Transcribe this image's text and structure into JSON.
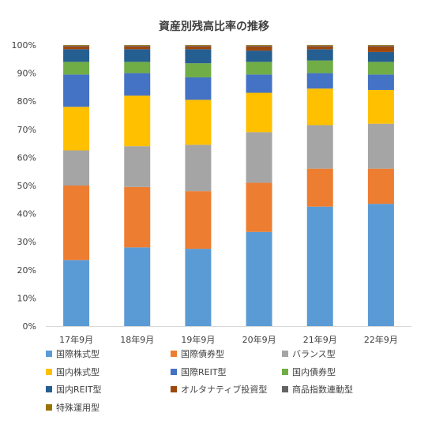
{
  "chart_data": {
    "type": "bar",
    "stacked": true,
    "title": "資産別残高比率の推移",
    "categories": [
      "17年9月",
      "18年9月",
      "19年9月",
      "20年9月",
      "21年9月",
      "22年9月"
    ],
    "ylim": [
      0,
      100
    ],
    "yticks": [
      "0%",
      "10%",
      "20%",
      "30%",
      "40%",
      "50%",
      "60%",
      "70%",
      "80%",
      "90%",
      "100%"
    ],
    "grid": false,
    "legend_position": "bottom",
    "series": [
      {
        "name": "国際株式型",
        "color": "#5B9BD5",
        "values": [
          23.5,
          28.0,
          27.5,
          33.5,
          42.5,
          43.5
        ]
      },
      {
        "name": "国際債券型",
        "color": "#ED7D31",
        "values": [
          26.5,
          21.5,
          20.5,
          17.5,
          13.5,
          12.5
        ]
      },
      {
        "name": "バランス型",
        "color": "#A5A5A5",
        "values": [
          12.5,
          14.5,
          16.5,
          18.0,
          15.5,
          16.0
        ]
      },
      {
        "name": "国内株式型",
        "color": "#FFC000",
        "values": [
          15.5,
          18.0,
          16.0,
          14.0,
          13.0,
          12.0
        ]
      },
      {
        "name": "国際REIT型",
        "color": "#4472C4",
        "values": [
          11.5,
          8.0,
          8.0,
          6.5,
          5.5,
          5.5
        ]
      },
      {
        "name": "国内債券型",
        "color": "#70AD47",
        "values": [
          4.5,
          4.0,
          5.0,
          4.5,
          4.5,
          4.5
        ]
      },
      {
        "name": "国内REIT型",
        "color": "#255E91",
        "values": [
          4.5,
          4.5,
          5.0,
          4.0,
          4.0,
          3.5
        ]
      },
      {
        "name": "オルタナティブ投資型",
        "color": "#9E480E",
        "values": [
          1.0,
          1.0,
          1.0,
          1.5,
          1.0,
          2.0
        ]
      },
      {
        "name": "商品指数連動型",
        "color": "#636363",
        "values": [
          0.3,
          0.3,
          0.3,
          0.3,
          0.3,
          0.3
        ]
      },
      {
        "name": "特殊運用型",
        "color": "#997300",
        "values": [
          0.2,
          0.2,
          0.2,
          0.2,
          0.2,
          0.2
        ]
      }
    ]
  }
}
